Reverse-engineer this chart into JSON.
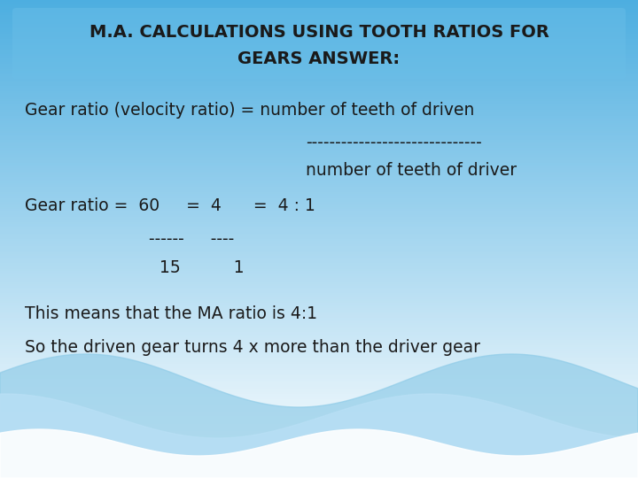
{
  "title_line1": "M.A. CALCULATIONS USING TOOTH RATIOS FOR",
  "title_line2": "GEARS ANSWER:",
  "text_color": "#1a1a1a",
  "line1": "Gear ratio (velocity ratio) = number of teeth of driven",
  "line2": "------------------------------",
  "line3": "number of teeth of driver",
  "line4_a": "Gear ratio =  60     =  4      =  4 : 1",
  "line5_a": "------     ----",
  "line6_a": "  15          1",
  "line7": "This means that the MA ratio is 4:1",
  "line8": "So the driven gear turns 4 x more than the driver gear",
  "font_family": "Comic Sans MS",
  "title_fontsize": 14,
  "body_fontsize": 13.5,
  "bg_color_top": "#4daee0",
  "bg_color_bottom": "#ffffff",
  "wave1_color": "#87ceeb",
  "wave2_color": "#b0dff5"
}
